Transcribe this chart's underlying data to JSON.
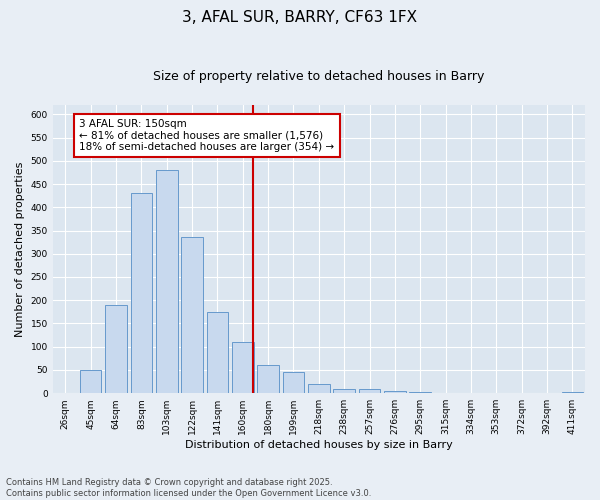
{
  "title": "3, AFAL SUR, BARRY, CF63 1FX",
  "subtitle": "Size of property relative to detached houses in Barry",
  "xlabel": "Distribution of detached houses by size in Barry",
  "ylabel": "Number of detached properties",
  "bins": [
    "26sqm",
    "45sqm",
    "64sqm",
    "83sqm",
    "103sqm",
    "122sqm",
    "141sqm",
    "160sqm",
    "180sqm",
    "199sqm",
    "218sqm",
    "238sqm",
    "257sqm",
    "276sqm",
    "295sqm",
    "315sqm",
    "334sqm",
    "353sqm",
    "372sqm",
    "392sqm",
    "411sqm"
  ],
  "values": [
    0,
    50,
    190,
    430,
    480,
    335,
    175,
    110,
    60,
    45,
    20,
    10,
    10,
    5,
    3,
    1,
    1,
    0,
    1,
    0,
    2
  ],
  "bar_color": "#c8d9ee",
  "bar_edge_color": "#6699cc",
  "vline_color": "#cc0000",
  "vline_pos": 7.42,
  "annotation_text": "3 AFAL SUR: 150sqm\n← 81% of detached houses are smaller (1,576)\n18% of semi-detached houses are larger (354) →",
  "annotation_box_color": "#cc0000",
  "ylim": [
    0,
    620
  ],
  "yticks": [
    0,
    50,
    100,
    150,
    200,
    250,
    300,
    350,
    400,
    450,
    500,
    550,
    600
  ],
  "bg_color": "#e8eef5",
  "plot_bg_color": "#dce6f0",
  "grid_color": "#ffffff",
  "footer": "Contains HM Land Registry data © Crown copyright and database right 2025.\nContains public sector information licensed under the Open Government Licence v3.0.",
  "title_fontsize": 11,
  "subtitle_fontsize": 9,
  "tick_fontsize": 6.5,
  "ylabel_fontsize": 8,
  "xlabel_fontsize": 8,
  "footer_fontsize": 6,
  "ann_fontsize": 7.5
}
